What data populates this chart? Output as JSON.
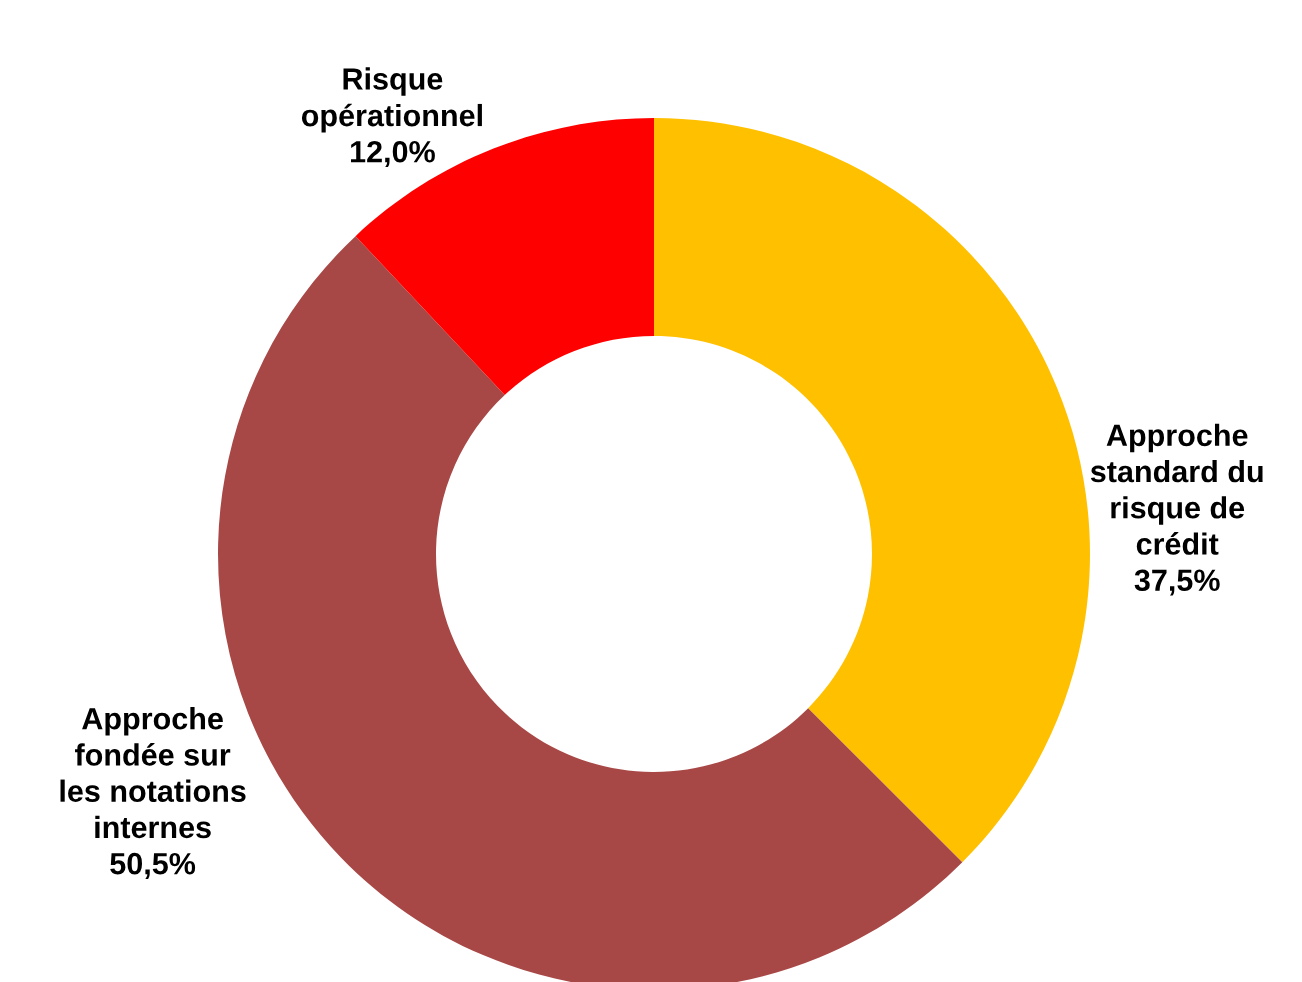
{
  "chart_data": {
    "type": "donut",
    "categories": [
      "Approche\nstandard du\nrisque de\ncrédit",
      "Approche\nfondée sur\nles notations\ninternes",
      "Risque\nopérationnel"
    ],
    "values": [
      37.5,
      50.5,
      12.0
    ],
    "value_labels": [
      "37,5%",
      "50,5%",
      "12,0%"
    ],
    "colors": [
      "#ffc000",
      "#a84846",
      "#ff0000"
    ],
    "legend": false
  }
}
